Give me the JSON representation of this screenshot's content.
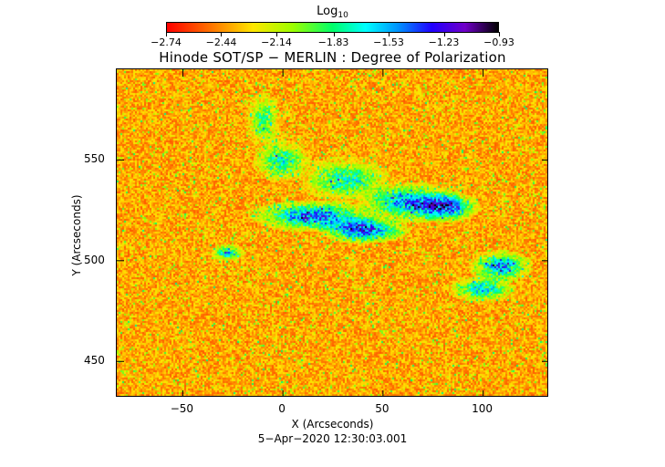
{
  "colorbar": {
    "title": "Log",
    "title_sub": "10",
    "tick_labels": [
      "−2.74",
      "−2.44",
      "−2.14",
      "−1.83",
      "−1.53",
      "−1.23",
      "−0.93"
    ],
    "tick_values": [
      -2.74,
      -2.44,
      -2.14,
      -1.83,
      -1.53,
      -1.23,
      -0.93
    ],
    "range": [
      -2.74,
      -0.93
    ],
    "colormap": [
      "#ff0000",
      "#ff7a00",
      "#ffe600",
      "#9cff00",
      "#00ff6a",
      "#00ffff",
      "#0090ff",
      "#2000ff",
      "#7000c8",
      "#000000"
    ]
  },
  "plot": {
    "title": "Hinode SOT/SP − MERLIN : Degree of Polarization",
    "xlabel": "X (Arcseconds)",
    "ylabel": "Y (Arcseconds)",
    "xlim": [
      -83,
      133
    ],
    "ylim": [
      432,
      595
    ],
    "x_ticks": [
      {
        "value": -50,
        "label": "−50"
      },
      {
        "value": 0,
        "label": "0"
      },
      {
        "value": 50,
        "label": "50"
      },
      {
        "value": 100,
        "label": "100"
      }
    ],
    "y_ticks": [
      {
        "value": 450,
        "label": "450"
      },
      {
        "value": 500,
        "label": "500"
      },
      {
        "value": 550,
        "label": "550"
      }
    ],
    "timestamp": "5−Apr−2020  12:30:03.001"
  }
}
